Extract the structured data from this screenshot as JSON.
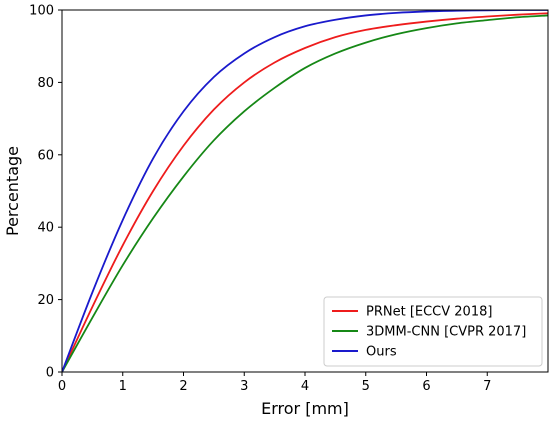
{
  "chart_data": {
    "type": "line",
    "xlabel": "Error [mm]",
    "ylabel": "Percentage",
    "xlim": [
      0,
      8
    ],
    "ylim": [
      0,
      100
    ],
    "xticks": [
      0,
      1,
      2,
      3,
      4,
      5,
      6,
      7
    ],
    "yticks": [
      0,
      20,
      40,
      60,
      80,
      100
    ],
    "grid": false,
    "legend_position": "bottom-right",
    "x": [
      0,
      0.5,
      1,
      1.5,
      2,
      2.5,
      3,
      3.5,
      4,
      4.5,
      5,
      5.5,
      6,
      6.5,
      7,
      7.5,
      8
    ],
    "series": [
      {
        "name": "PRNet [ECCV 2018]",
        "color": "#ee1c1c",
        "values": [
          0,
          18,
          35,
          50,
          62.5,
          72.5,
          80,
          85.5,
          89.5,
          92.5,
          94.5,
          95.8,
          96.8,
          97.6,
          98.2,
          98.7,
          99.1
        ]
      },
      {
        "name": "3DMM-CNN [CVPR 2017]",
        "color": "#168816",
        "values": [
          0,
          15,
          29.5,
          42.5,
          54,
          64,
          72,
          78.5,
          84,
          88,
          91,
          93.3,
          95,
          96.3,
          97.2,
          98,
          98.5
        ]
      },
      {
        "name": "Ours",
        "color": "#1a1acc",
        "values": [
          0,
          22,
          42,
          59,
          72,
          81.5,
          88,
          92.5,
          95.5,
          97.3,
          98.5,
          99.2,
          99.6,
          99.8,
          99.9,
          100,
          100
        ]
      }
    ]
  }
}
